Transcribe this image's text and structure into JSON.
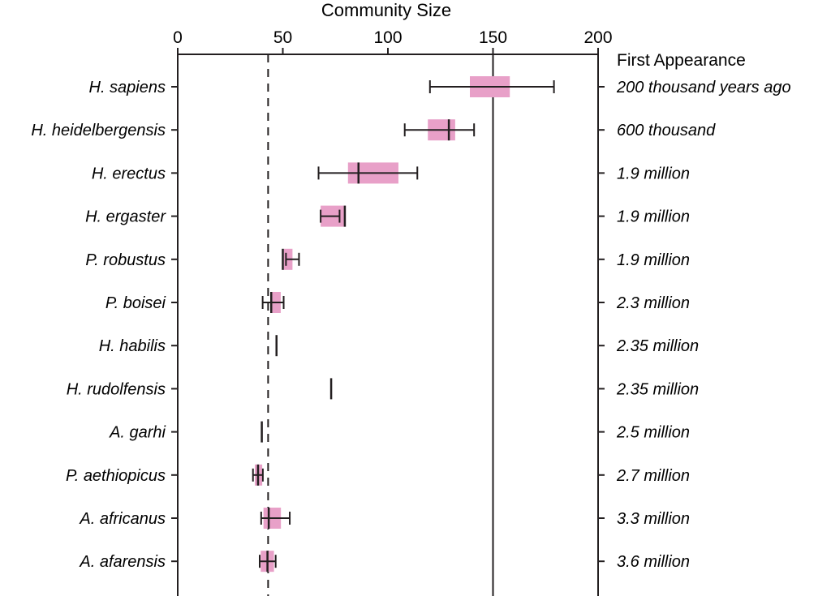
{
  "chart_data": {
    "type": "box-range",
    "title": "Community Size",
    "xlabel": "Community Size",
    "xlim": [
      0,
      200
    ],
    "xticks": [
      0,
      50,
      100,
      150,
      200
    ],
    "right_axis_header": "First Appearance",
    "reference_lines": [
      {
        "value": 43,
        "style": "dashed"
      },
      {
        "value": 150,
        "style": "solid"
      }
    ],
    "box_color": "#e8a0c8",
    "line_color": "#231f20",
    "rows": [
      {
        "species": "H. sapiens",
        "first_appearance": "200 thousand years ago",
        "box": [
          139,
          158
        ],
        "center": null,
        "whisker": [
          120,
          179
        ]
      },
      {
        "species": "H. heidelbergensis",
        "first_appearance": "600 thousand",
        "box": [
          119,
          132
        ],
        "center": 129,
        "whisker": [
          108,
          141
        ]
      },
      {
        "species": "H. erectus",
        "first_appearance": "1.9 million",
        "box": [
          81,
          105
        ],
        "center": 86,
        "whisker": [
          67,
          114
        ]
      },
      {
        "species": "H. ergaster",
        "first_appearance": "1.9 million",
        "box": [
          68,
          80
        ],
        "center": 79.5,
        "whisker": [
          68,
          77
        ]
      },
      {
        "species": "P. robustus",
        "first_appearance": "1.9 million",
        "box": [
          50.5,
          54.6
        ],
        "center": 50,
        "whisker": [
          51.5,
          57.7
        ]
      },
      {
        "species": "P. boisei",
        "first_appearance": "2.3 million",
        "box": [
          45,
          49
        ],
        "center": 44.5,
        "whisker": [
          40.4,
          50.4
        ]
      },
      {
        "species": "H. habilis",
        "first_appearance": "2.35 million",
        "box": null,
        "center": 47,
        "whisker": null
      },
      {
        "species": "H. rudolfensis",
        "first_appearance": "2.35 million",
        "box": null,
        "center": 73,
        "whisker": null
      },
      {
        "species": "A. garhi",
        "first_appearance": "2.5 million",
        "box": null,
        "center": 40,
        "whisker": null
      },
      {
        "species": "P. aethiopicus",
        "first_appearance": "2.7 million",
        "box": [
          36.7,
          40.2
        ],
        "center": 38.2,
        "whisker": [
          35.8,
          40.5
        ]
      },
      {
        "species": "A. africanus",
        "first_appearance": "3.3 million",
        "box": [
          40.8,
          49.1
        ],
        "center": 43.3,
        "whisker": [
          39.7,
          53.3
        ]
      },
      {
        "species": "A. afarensis",
        "first_appearance": "3.6 million",
        "box": [
          39.5,
          45.8
        ],
        "center": 42.7,
        "whisker": [
          39,
          46.6
        ]
      }
    ]
  }
}
